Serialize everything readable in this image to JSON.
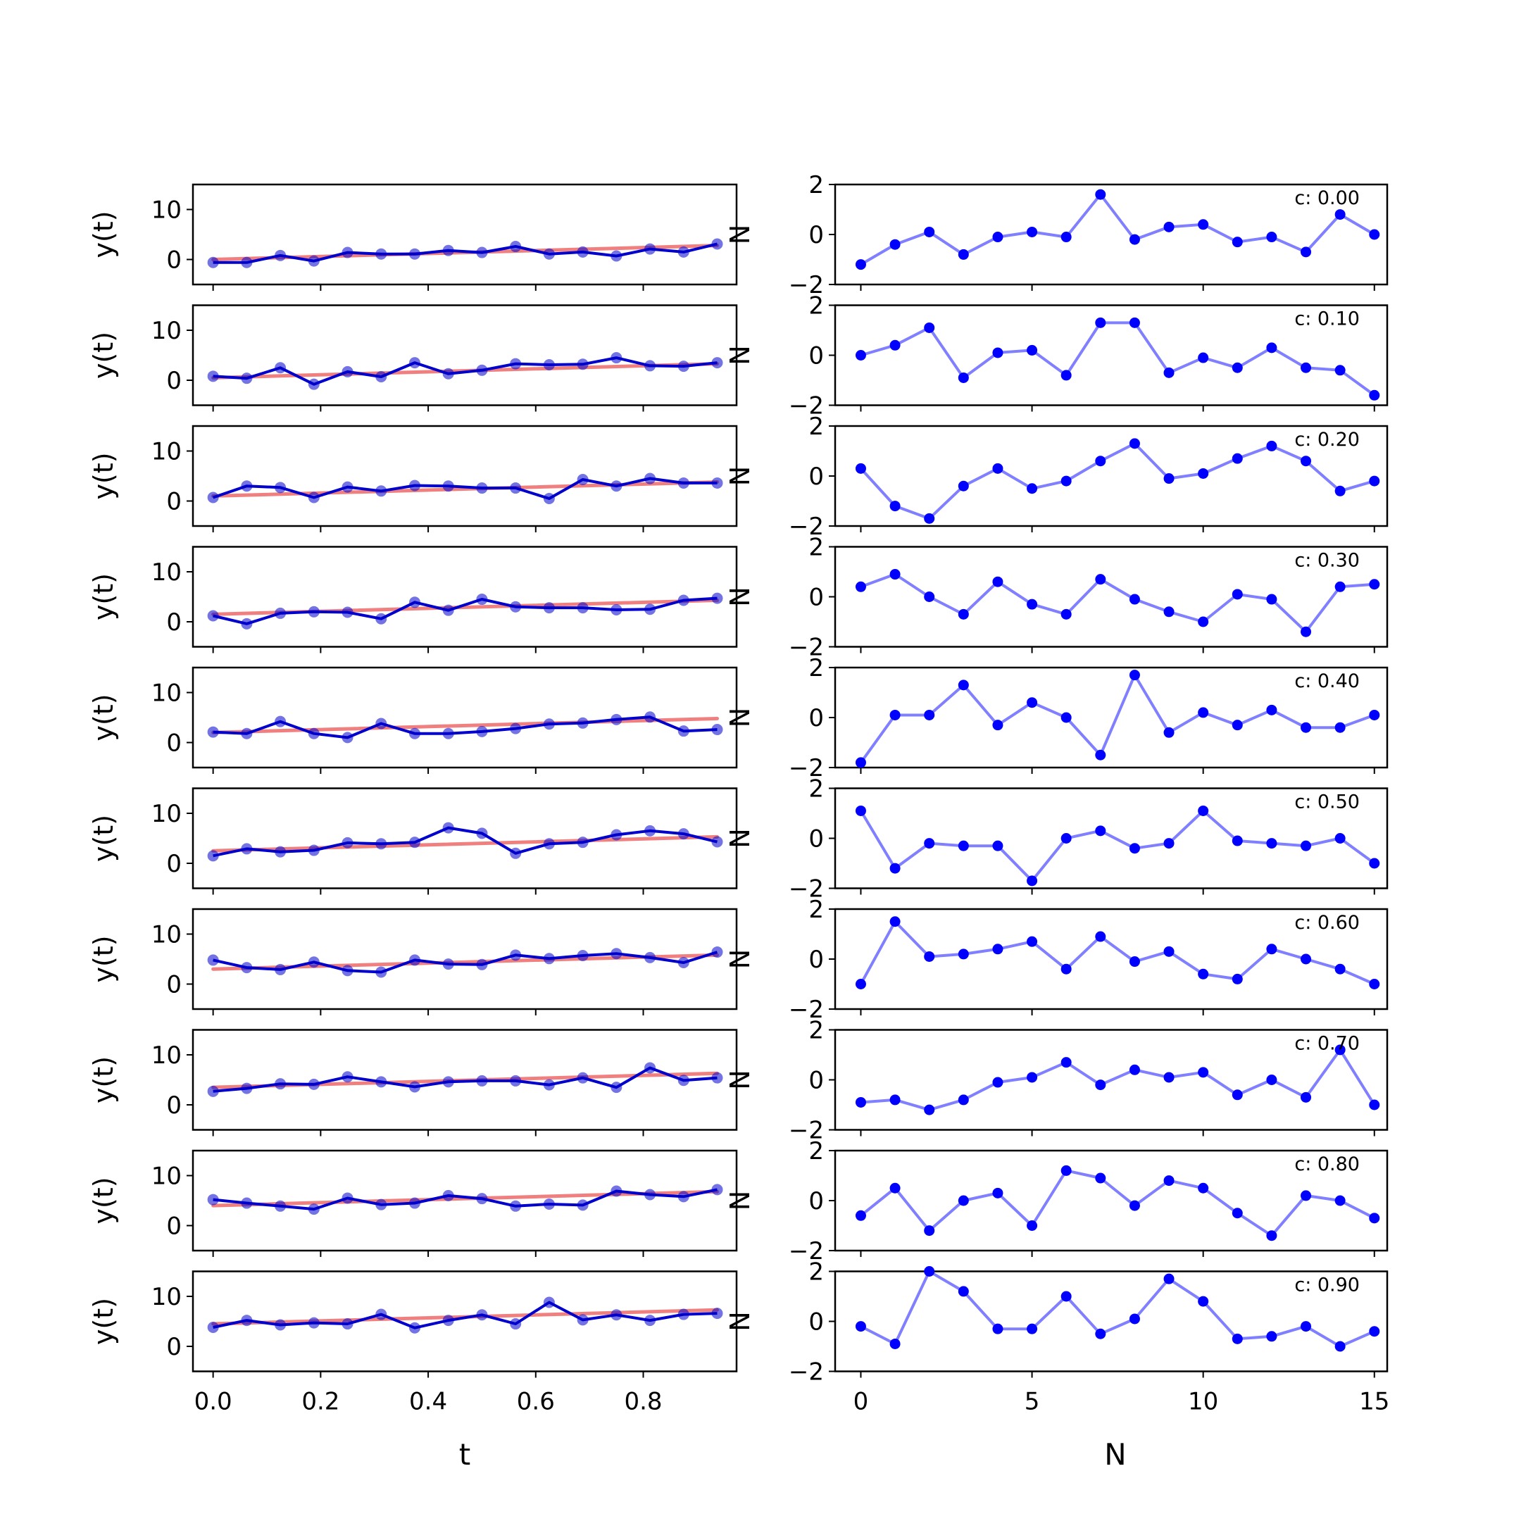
{
  "figure": {
    "left_xlabel": "t",
    "right_xlabel": "N",
    "left_ylabel": "y(t)",
    "right_ylabel": "N"
  },
  "colors": {
    "observed": "#0000cc",
    "trend": "#f08080",
    "noise": "#0000ff",
    "axes": "#000000"
  },
  "chart_data": [
    {
      "type": "line",
      "panel": "left",
      "title": "",
      "xlabel": "t",
      "ylabel": "y(t)",
      "xlim": [
        -0.0375,
        0.9735
      ],
      "ylim": [
        -5,
        15
      ],
      "xticks": [
        0.0,
        0.2,
        0.4,
        0.6,
        0.8
      ],
      "xtick_labels": [
        "0.0",
        "0.2",
        "0.4",
        "0.6",
        "0.8"
      ],
      "yticks": [
        0,
        10
      ],
      "x": [
        0.0,
        0.0625,
        0.125,
        0.1875,
        0.25,
        0.3125,
        0.375,
        0.4375,
        0.5,
        0.5625,
        0.625,
        0.6875,
        0.75,
        0.8125,
        0.875,
        0.9375
      ],
      "panels": [
        {
          "c": "0.00",
          "trend": [
            0.0,
            2.8
          ],
          "values": [
            -0.6,
            -0.6,
            0.8,
            -0.3,
            1.4,
            1.1,
            1.1,
            1.8,
            1.4,
            2.6,
            1.1,
            1.5,
            0.7,
            2.1,
            1.5,
            3.1
          ]
        },
        {
          "c": "0.10",
          "trend": [
            0.5,
            3.3
          ],
          "values": [
            0.8,
            0.4,
            2.5,
            -0.8,
            1.7,
            0.7,
            3.5,
            1.3,
            2.0,
            3.3,
            3.1,
            3.2,
            4.5,
            2.9,
            2.8,
            3.5
          ]
        },
        {
          "c": "0.20",
          "trend": [
            1.0,
            3.8
          ],
          "values": [
            0.7,
            3.0,
            2.7,
            0.7,
            2.8,
            2.0,
            3.1,
            3.0,
            2.6,
            2.6,
            0.5,
            4.3,
            3.0,
            4.5,
            3.6,
            3.6
          ]
        },
        {
          "c": "0.30",
          "trend": [
            1.5,
            4.3
          ],
          "values": [
            1.2,
            -0.4,
            1.7,
            2.0,
            1.9,
            0.6,
            3.9,
            2.3,
            4.5,
            3.0,
            2.8,
            2.8,
            2.4,
            2.5,
            4.3,
            4.7
          ]
        },
        {
          "c": "0.40",
          "trend": [
            2.0,
            4.8
          ],
          "values": [
            2.1,
            1.8,
            4.2,
            1.8,
            1.0,
            3.8,
            1.8,
            1.8,
            2.2,
            2.8,
            3.7,
            3.9,
            4.6,
            5.1,
            2.3,
            2.6
          ]
        },
        {
          "c": "0.50",
          "trend": [
            2.5,
            5.3
          ],
          "values": [
            1.5,
            2.9,
            2.3,
            2.6,
            4.1,
            3.9,
            4.2,
            7.1,
            6.0,
            2.0,
            3.9,
            4.2,
            5.7,
            6.5,
            5.9,
            4.3
          ]
        },
        {
          "c": "0.60",
          "trend": [
            3.0,
            5.8
          ],
          "values": [
            4.8,
            3.3,
            2.9,
            4.4,
            2.7,
            2.4,
            4.8,
            4.0,
            3.9,
            5.8,
            5.1,
            5.7,
            6.1,
            5.3,
            4.3,
            6.4
          ]
        },
        {
          "c": "0.70",
          "trend": [
            3.5,
            6.3
          ],
          "values": [
            2.7,
            3.3,
            4.2,
            4.1,
            5.6,
            4.6,
            3.6,
            4.6,
            4.8,
            4.8,
            4.0,
            5.4,
            3.5,
            7.4,
            4.9,
            5.4
          ]
        },
        {
          "c": "0.80",
          "trend": [
            4.0,
            6.8
          ],
          "values": [
            5.2,
            4.5,
            3.9,
            3.3,
            5.5,
            4.2,
            4.5,
            6.0,
            5.4,
            3.9,
            4.3,
            4.1,
            6.9,
            6.2,
            5.8,
            7.2
          ]
        },
        {
          "c": "0.90",
          "trend": [
            4.5,
            7.3
          ],
          "values": [
            3.8,
            5.2,
            4.3,
            4.7,
            4.5,
            6.4,
            3.7,
            5.2,
            6.3,
            4.5,
            8.8,
            5.3,
            6.3,
            5.2,
            6.4,
            6.6
          ]
        }
      ]
    },
    {
      "type": "line",
      "panel": "right",
      "title": "",
      "xlabel": "N",
      "ylabel": "N",
      "xlim": [
        -0.75,
        15.375
      ],
      "ylim": [
        -2,
        2
      ],
      "xticks": [
        0,
        5,
        10,
        15
      ],
      "xtick_labels": [
        "0",
        "5",
        "10",
        "15"
      ],
      "yticks": [
        -2,
        0,
        2
      ],
      "ytick_labels": [
        "−2",
        "0",
        "2"
      ],
      "x": [
        0,
        1,
        2,
        3,
        4,
        5,
        6,
        7,
        8,
        9,
        10,
        11,
        12,
        13,
        14,
        15
      ],
      "panels": [
        {
          "label": "c: 0.00",
          "values": [
            -1.2,
            -0.4,
            0.1,
            -0.8,
            -0.1,
            0.1,
            -0.1,
            1.6,
            -0.2,
            0.3,
            0.4,
            -0.3,
            -0.1,
            -0.7,
            0.8,
            0.0
          ]
        },
        {
          "label": "c: 0.10",
          "values": [
            0.0,
            0.4,
            1.1,
            -0.9,
            0.1,
            0.2,
            -0.8,
            1.3,
            1.3,
            -0.7,
            -0.1,
            -0.5,
            0.3,
            -0.5,
            -0.6,
            -1.6
          ]
        },
        {
          "label": "c: 0.20",
          "values": [
            0.3,
            -1.2,
            -1.7,
            -0.4,
            0.3,
            -0.5,
            -0.2,
            0.6,
            1.3,
            -0.1,
            0.1,
            0.7,
            1.2,
            0.6,
            -0.6,
            -0.2
          ]
        },
        {
          "label": "c: 0.30",
          "values": [
            0.4,
            0.9,
            0.0,
            -0.7,
            0.6,
            -0.3,
            -0.7,
            0.7,
            -0.1,
            -0.6,
            -1.0,
            0.1,
            -0.1,
            -1.4,
            0.4,
            0.5
          ]
        },
        {
          "label": "c: 0.40",
          "values": [
            -1.8,
            0.1,
            0.1,
            1.3,
            -0.3,
            0.6,
            0.0,
            -1.5,
            1.7,
            -0.6,
            0.2,
            -0.3,
            0.3,
            -0.4,
            -0.4,
            0.1
          ]
        },
        {
          "label": "c: 0.50",
          "values": [
            1.1,
            -1.2,
            -0.2,
            -0.3,
            -0.3,
            -1.7,
            0.0,
            0.3,
            -0.4,
            -0.2,
            1.1,
            -0.1,
            -0.2,
            -0.3,
            0.0,
            -1.0
          ]
        },
        {
          "label": "c: 0.60",
          "values": [
            -1.0,
            1.5,
            0.1,
            0.2,
            0.4,
            0.7,
            -0.4,
            0.9,
            -0.1,
            0.3,
            -0.6,
            -0.8,
            0.4,
            0.0,
            -0.4,
            -1.0
          ]
        },
        {
          "label": "c: 0.70",
          "values": [
            -0.9,
            -0.8,
            -1.2,
            -0.8,
            -0.1,
            0.1,
            0.7,
            -0.2,
            0.4,
            0.1,
            0.3,
            -0.6,
            0.0,
            -0.7,
            1.2,
            -1.0
          ]
        },
        {
          "label": "c: 0.80",
          "values": [
            -0.6,
            0.5,
            -1.2,
            0.0,
            0.3,
            -1.0,
            1.2,
            0.9,
            -0.2,
            0.8,
            0.5,
            -0.5,
            -1.4,
            0.2,
            0.0,
            -0.7
          ]
        },
        {
          "label": "c: 0.90",
          "values": [
            -0.2,
            -0.9,
            2.0,
            1.2,
            -0.3,
            -0.3,
            1.0,
            -0.5,
            0.1,
            1.7,
            0.8,
            -0.7,
            -0.6,
            -0.2,
            -1.0,
            -0.4
          ]
        }
      ]
    }
  ]
}
